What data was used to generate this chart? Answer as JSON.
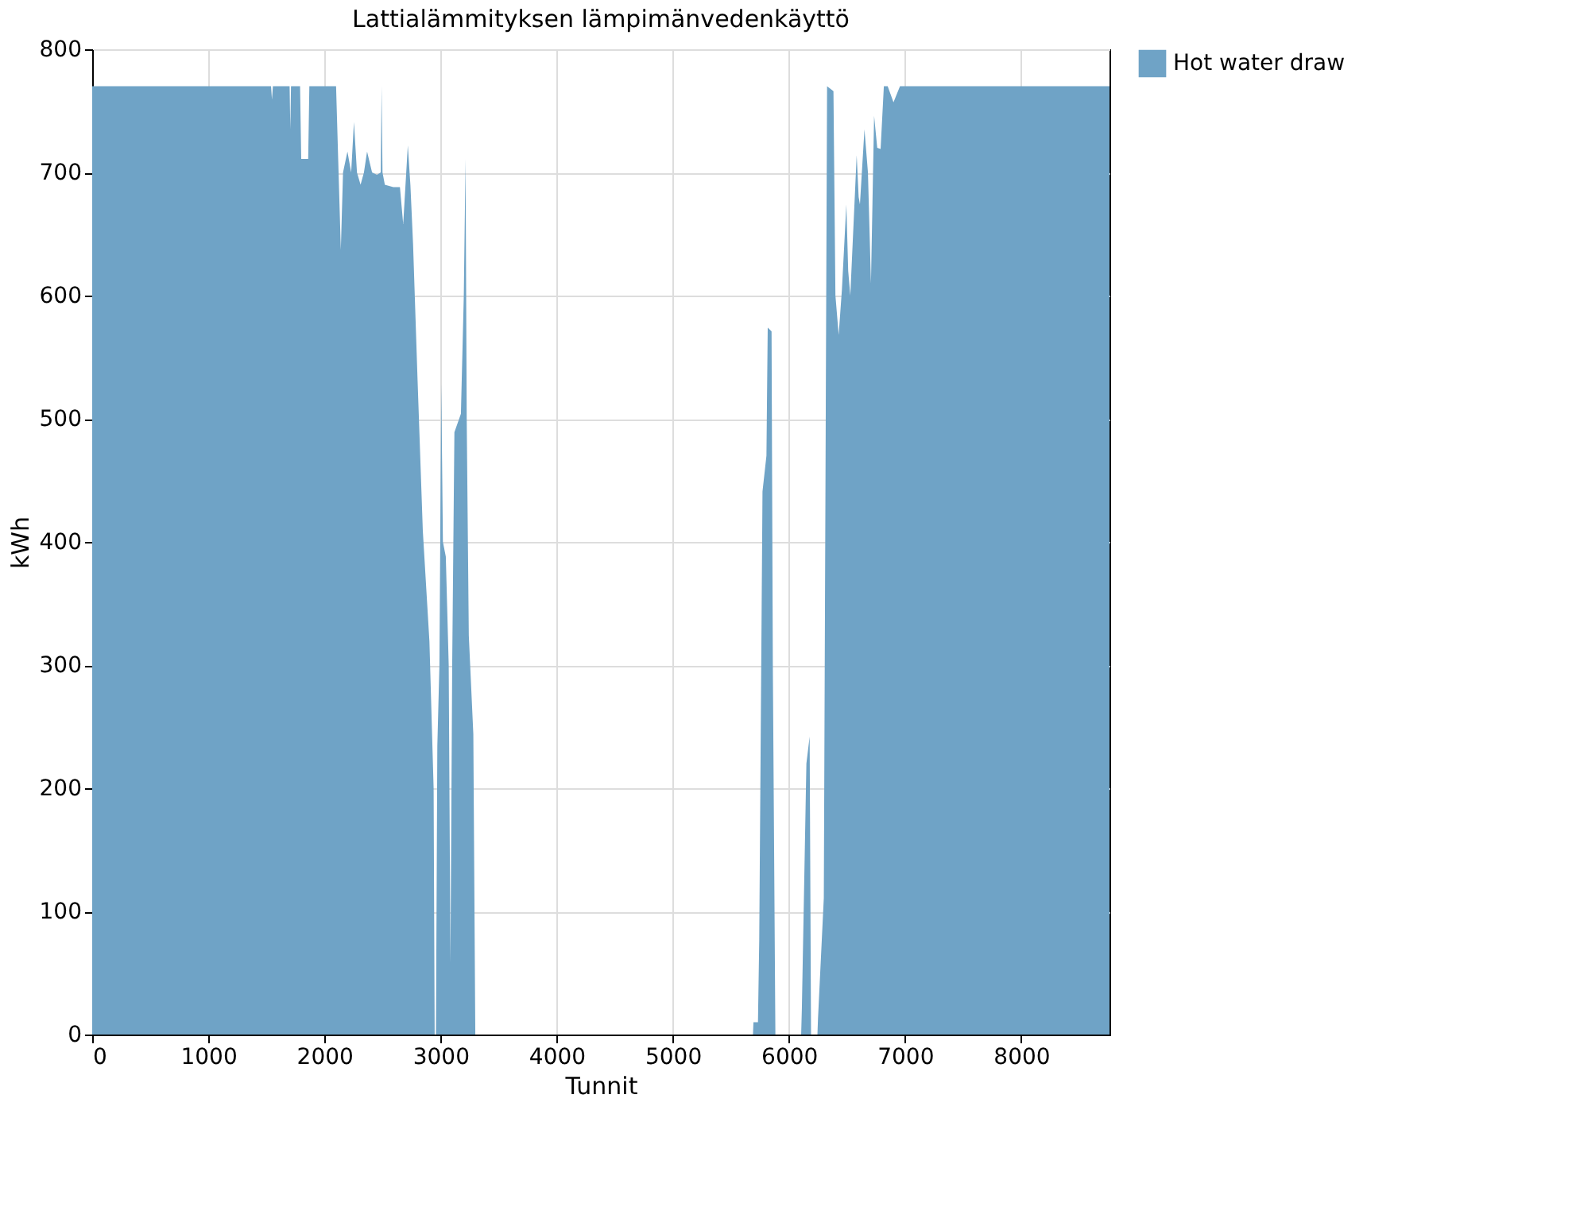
{
  "chart_data": {
    "type": "area",
    "title": "Lattialämmityksen lämpimänvedenkäyttö",
    "xlabel": "Tunnit",
    "ylabel": "kWh",
    "x": [
      0,
      1540,
      1548,
      1556,
      1700,
      1706,
      1712,
      1790,
      1800,
      1860,
      1870,
      2100,
      2141,
      2160,
      2198,
      2230,
      2254,
      2280,
      2311,
      2340,
      2367,
      2410,
      2452,
      2485,
      2492,
      2500,
      2520,
      2593,
      2650,
      2678,
      2718,
      2740,
      2763,
      2802,
      2847,
      2904,
      2940,
      2949,
      2960,
      2972,
      2990,
      3006,
      3020,
      3045,
      3070,
      3085,
      3100,
      3119,
      3175,
      3200,
      3215,
      3225,
      3243,
      3282,
      3299,
      5690,
      5694,
      5733,
      5744,
      5772,
      5806,
      5817,
      5850,
      5861,
      5883,
      6105,
      6111,
      6150,
      6178,
      6190,
      6245,
      6250,
      6300,
      6328,
      6383,
      6400,
      6428,
      6456,
      6494,
      6510,
      6528,
      6583,
      6600,
      6611,
      6650,
      6680,
      6706,
      6733,
      6760,
      6789,
      6817,
      6850,
      6900,
      6956,
      8760
    ],
    "series": [
      {
        "name": "Hot water draw",
        "color": "#6fa3c6",
        "values": [
          770,
          770,
          759,
          770,
          770,
          735,
          770,
          770,
          711,
          711,
          770,
          770,
          637,
          700,
          717,
          700,
          741,
          700,
          690,
          700,
          717,
          700,
          698,
          700,
          770,
          700,
          690,
          688,
          688,
          658,
          722,
          690,
          642,
          531,
          409,
          319,
          200,
          0,
          0,
          234,
          300,
          528,
          400,
          388,
          300,
          58,
          300,
          489,
          504,
          600,
          711,
          500,
          324,
          244,
          0,
          0,
          10,
          10,
          77,
          441,
          470,
          574,
          571,
          300,
          0,
          0,
          21,
          220,
          242,
          0,
          0,
          13,
          111,
          770,
          766,
          600,
          568,
          605,
          674,
          620,
          600,
          714,
          680,
          674,
          735,
          700,
          610,
          746,
          720,
          719,
          770,
          770,
          757,
          770,
          770
        ]
      }
    ],
    "xlim": [
      0,
      8760
    ],
    "xticks": [
      0,
      1000,
      2000,
      3000,
      4000,
      5000,
      6000,
      7000,
      8000
    ],
    "ylim": [
      0,
      800
    ],
    "yticks": [
      0,
      100,
      200,
      300,
      400,
      500,
      600,
      700,
      800
    ],
    "grid": true,
    "legend": "top right"
  }
}
